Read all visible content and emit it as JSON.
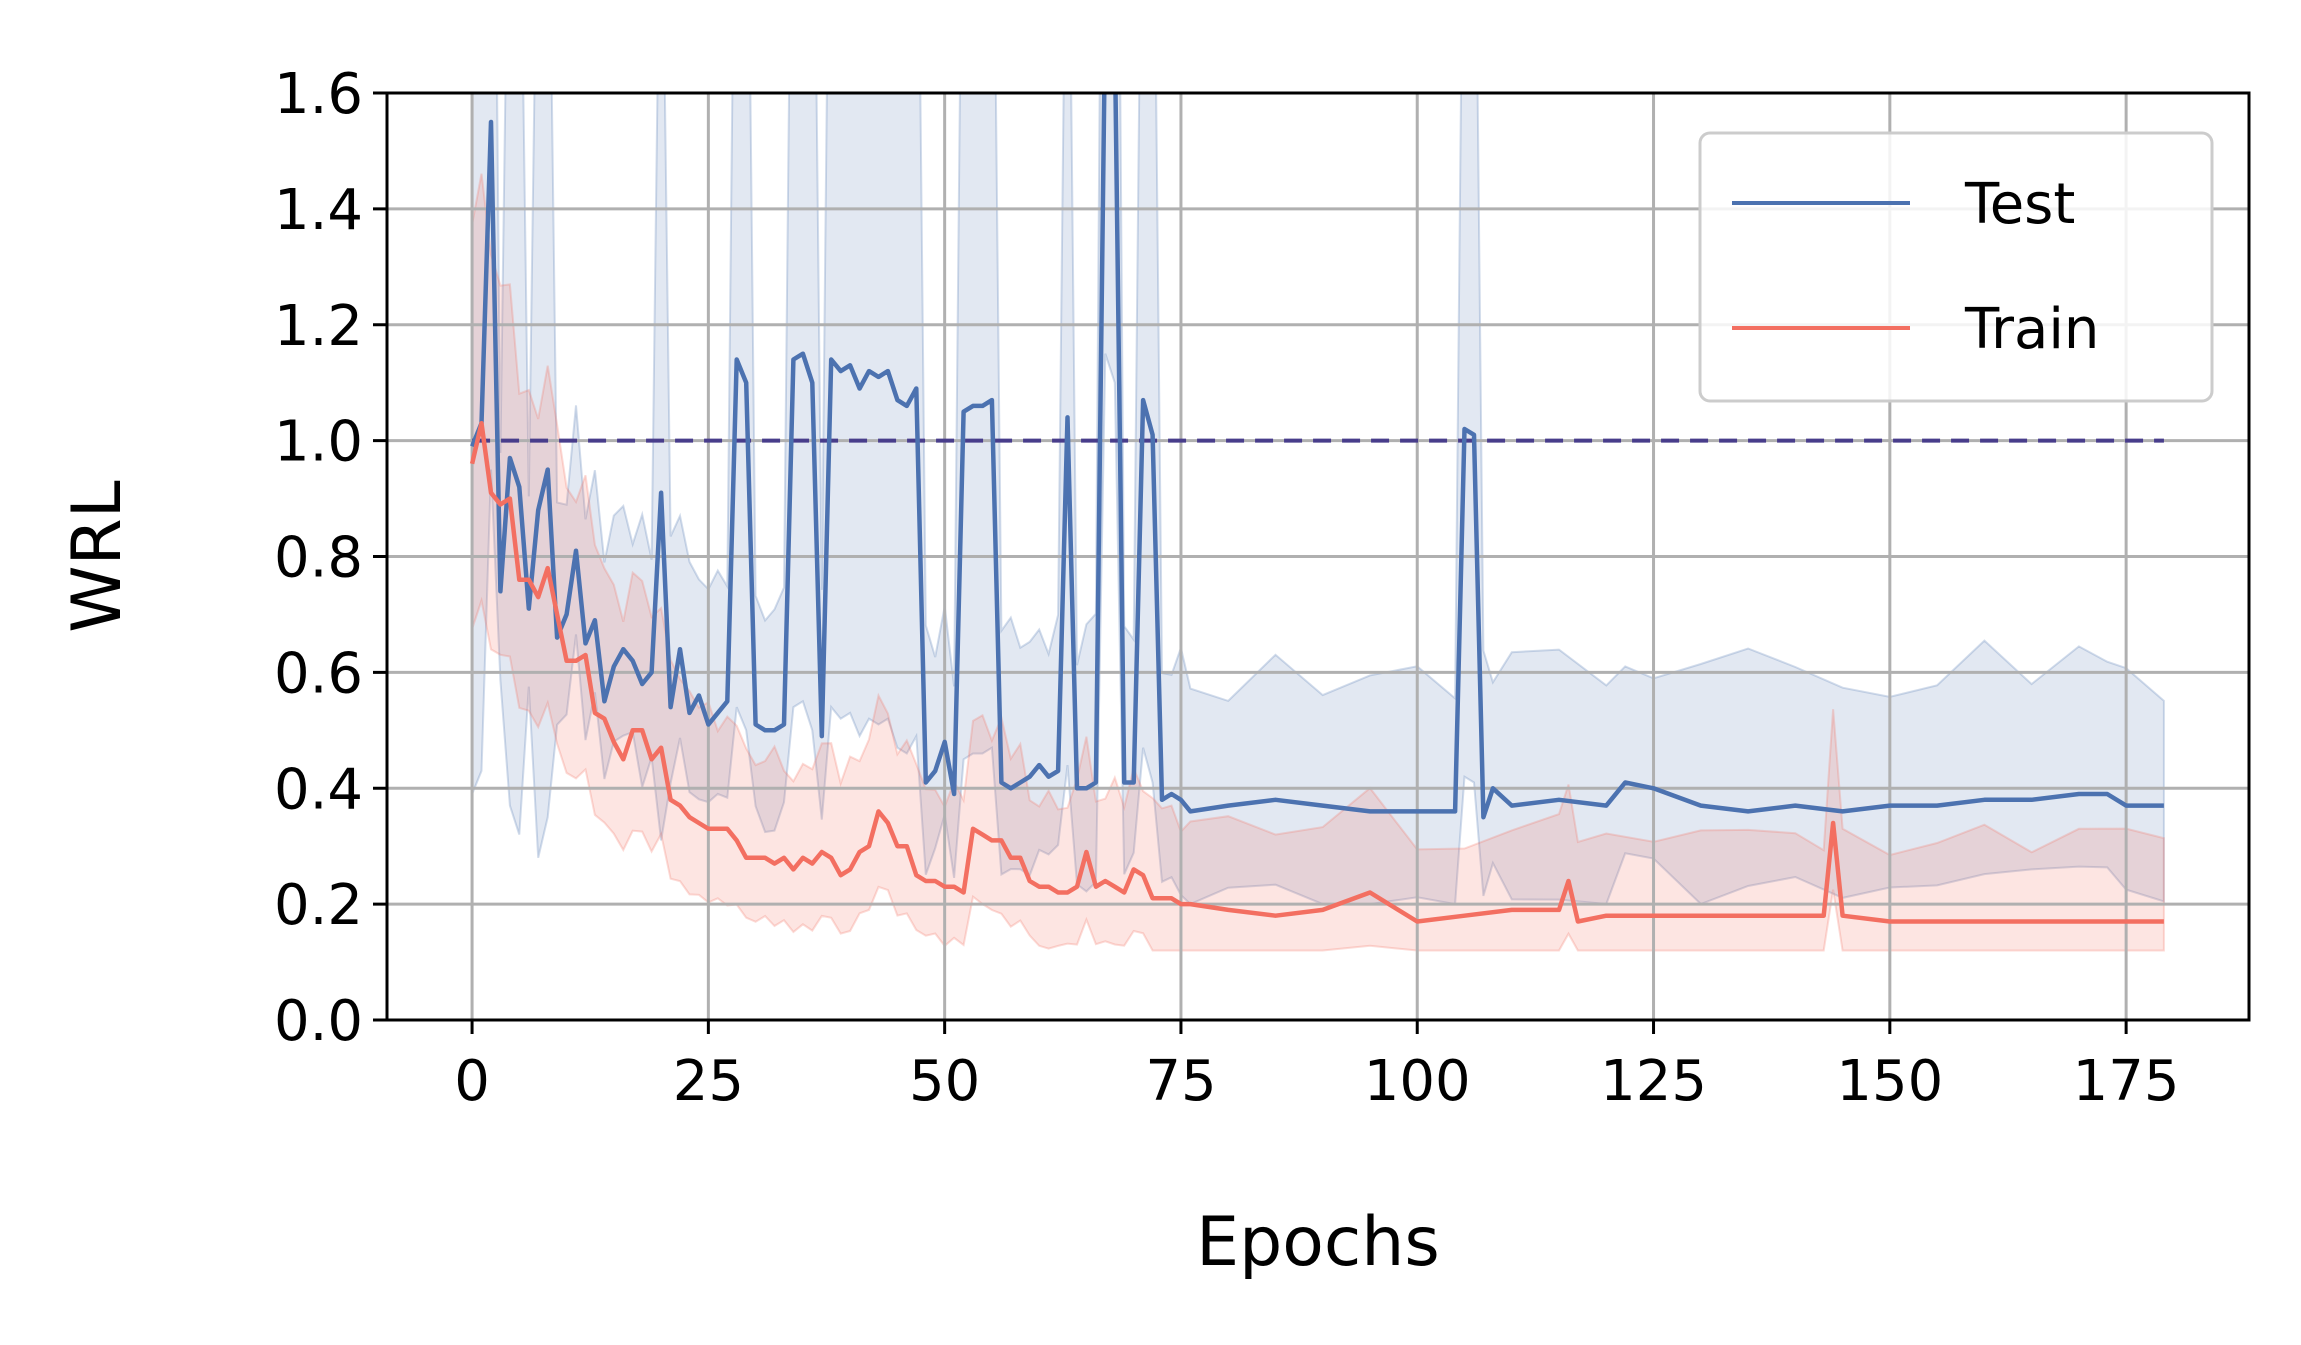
{
  "chart_data": {
    "type": "line",
    "title": "",
    "xlabel": "Epochs",
    "ylabel": "WRL",
    "xlim": [
      -9,
      188
    ],
    "ylim": [
      0.0,
      1.6
    ],
    "x_ticks": [
      0,
      25,
      50,
      75,
      100,
      125,
      150,
      175
    ],
    "x_tick_labels": [
      "0",
      "25",
      "50",
      "75",
      "100",
      "125",
      "150",
      "175"
    ],
    "y_ticks": [
      0.0,
      0.2,
      0.4,
      0.6,
      0.8,
      1.0,
      1.2,
      1.4,
      1.6
    ],
    "y_tick_labels": [
      "0.0",
      "0.2",
      "0.4",
      "0.6",
      "0.8",
      "1.0",
      "1.2",
      "1.4",
      "1.6"
    ],
    "grid": true,
    "legend_position": "top-right",
    "reference_line": {
      "y": 1.0,
      "x_start": 0,
      "x_end": 179,
      "style": "dashed",
      "color": "#483d8b"
    },
    "series": [
      {
        "name": "Test",
        "color": "#4c72b0",
        "x": [
          0,
          1,
          2,
          3,
          4,
          5,
          6,
          7,
          8,
          9,
          10,
          11,
          12,
          13,
          14,
          15,
          16,
          17,
          18,
          19,
          20,
          21,
          22,
          23,
          24,
          25,
          26,
          27,
          28,
          29,
          30,
          31,
          32,
          33,
          34,
          35,
          36,
          37,
          38,
          39,
          40,
          41,
          42,
          43,
          44,
          45,
          46,
          47,
          48,
          49,
          50,
          51,
          52,
          53,
          54,
          55,
          56,
          57,
          58,
          59,
          60,
          61,
          62,
          63,
          64,
          65,
          66,
          67,
          68,
          69,
          70,
          71,
          72,
          73,
          74,
          75,
          76,
          80,
          85,
          90,
          95,
          100,
          104,
          105,
          106,
          107,
          108,
          110,
          115,
          120,
          122,
          125,
          130,
          135,
          140,
          145,
          150,
          155,
          160,
          165,
          170,
          173,
          175,
          179
        ],
        "values": [
          0.99,
          1.03,
          1.55,
          0.74,
          0.97,
          0.92,
          0.71,
          0.88,
          0.95,
          0.66,
          0.7,
          0.81,
          0.65,
          0.69,
          0.55,
          0.61,
          0.64,
          0.62,
          0.58,
          0.6,
          0.91,
          0.54,
          0.64,
          0.53,
          0.56,
          0.51,
          0.53,
          0.55,
          1.14,
          1.1,
          0.51,
          0.5,
          0.5,
          0.51,
          1.14,
          1.15,
          1.1,
          0.49,
          1.14,
          1.12,
          1.13,
          1.09,
          1.12,
          1.11,
          1.12,
          1.07,
          1.06,
          1.09,
          0.41,
          0.43,
          0.48,
          0.39,
          1.05,
          1.06,
          1.06,
          1.07,
          0.41,
          0.4,
          0.41,
          0.42,
          0.44,
          0.42,
          0.43,
          1.04,
          0.4,
          0.4,
          0.41,
          1.75,
          1.7,
          0.41,
          0.41,
          1.07,
          1.01,
          0.38,
          0.39,
          0.38,
          0.36,
          0.37,
          0.38,
          0.37,
          0.36,
          0.36,
          0.36,
          1.02,
          1.01,
          0.35,
          0.4,
          0.37,
          0.38,
          0.37,
          0.41,
          0.4,
          0.37,
          0.36,
          0.37,
          0.36,
          0.37,
          0.37,
          0.38,
          0.38,
          0.39,
          0.39,
          0.37,
          0.37
        ]
      },
      {
        "name": "Train",
        "color": "#f36f61",
        "x": [
          0,
          1,
          2,
          3,
          4,
          5,
          6,
          7,
          8,
          9,
          10,
          11,
          12,
          13,
          14,
          15,
          16,
          17,
          18,
          19,
          20,
          21,
          22,
          23,
          24,
          25,
          26,
          27,
          28,
          29,
          30,
          31,
          32,
          33,
          34,
          35,
          36,
          37,
          38,
          39,
          40,
          41,
          42,
          43,
          44,
          45,
          46,
          47,
          48,
          49,
          50,
          51,
          52,
          53,
          54,
          55,
          56,
          57,
          58,
          59,
          60,
          61,
          62,
          63,
          64,
          65,
          66,
          67,
          68,
          69,
          70,
          71,
          72,
          73,
          74,
          75,
          76,
          80,
          85,
          90,
          95,
          100,
          105,
          110,
          115,
          116,
          117,
          120,
          125,
          130,
          135,
          140,
          143,
          144,
          145,
          150,
          155,
          160,
          165,
          170,
          175,
          179
        ],
        "values": [
          0.96,
          1.03,
          0.91,
          0.89,
          0.9,
          0.76,
          0.76,
          0.73,
          0.78,
          0.7,
          0.62,
          0.62,
          0.63,
          0.53,
          0.52,
          0.48,
          0.45,
          0.5,
          0.5,
          0.45,
          0.47,
          0.38,
          0.37,
          0.35,
          0.34,
          0.33,
          0.33,
          0.33,
          0.31,
          0.28,
          0.28,
          0.28,
          0.27,
          0.28,
          0.26,
          0.28,
          0.27,
          0.29,
          0.28,
          0.25,
          0.26,
          0.29,
          0.3,
          0.36,
          0.34,
          0.3,
          0.3,
          0.25,
          0.24,
          0.24,
          0.23,
          0.23,
          0.22,
          0.33,
          0.32,
          0.31,
          0.31,
          0.28,
          0.28,
          0.24,
          0.23,
          0.23,
          0.22,
          0.22,
          0.23,
          0.29,
          0.23,
          0.24,
          0.23,
          0.22,
          0.26,
          0.25,
          0.21,
          0.21,
          0.21,
          0.2,
          0.2,
          0.19,
          0.18,
          0.19,
          0.22,
          0.17,
          0.18,
          0.19,
          0.19,
          0.24,
          0.17,
          0.18,
          0.18,
          0.18,
          0.18,
          0.18,
          0.18,
          0.34,
          0.18,
          0.17,
          0.17,
          0.17,
          0.17,
          0.17,
          0.17,
          0.17
        ]
      }
    ]
  }
}
